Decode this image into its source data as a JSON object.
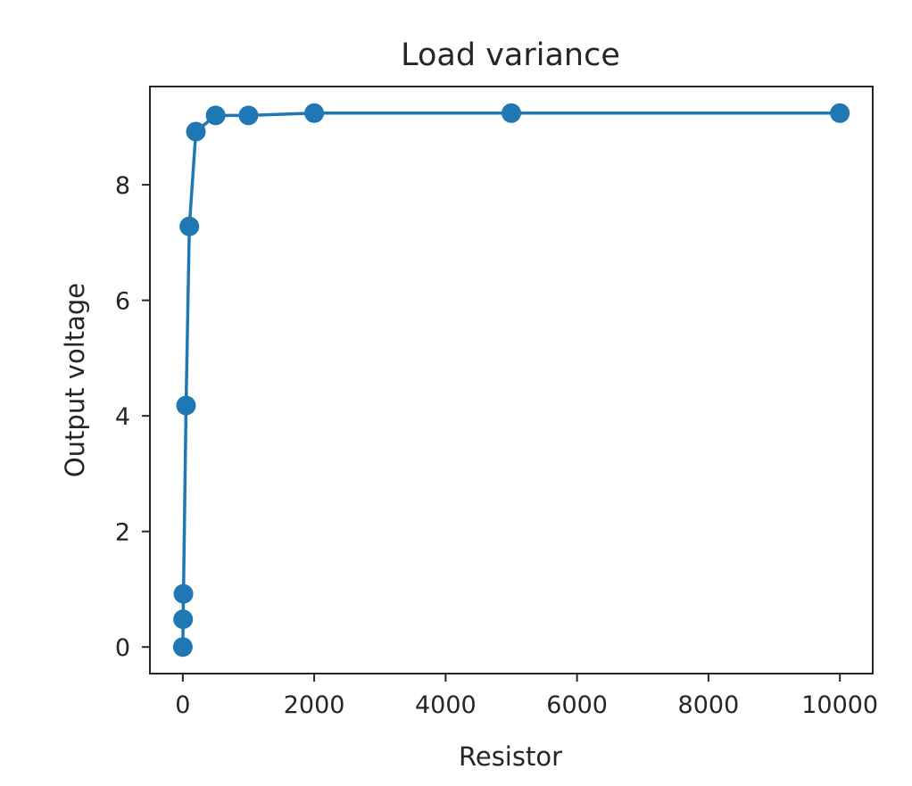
{
  "chart_data": {
    "type": "line",
    "title": "Load variance",
    "xlabel": "Resistor",
    "ylabel": "Output voltage",
    "xlim": [
      -500,
      10500
    ],
    "ylim": [
      -0.46,
      9.7
    ],
    "xticks": [
      0,
      2000,
      4000,
      6000,
      8000,
      10000
    ],
    "xtick_labels": [
      "0",
      "2000",
      "4000",
      "6000",
      "8000",
      "10000"
    ],
    "yticks": [
      0,
      2,
      4,
      6,
      8
    ],
    "ytick_labels": [
      "0",
      "2",
      "4",
      "6",
      "8"
    ],
    "grid": false,
    "marker": "circle",
    "series": [
      {
        "color": "#1f77b4",
        "x": [
          1,
          5,
          10,
          50,
          100,
          200,
          500,
          1000,
          2000,
          5000,
          10000
        ],
        "y": [
          0.0,
          0.48,
          0.92,
          4.18,
          7.28,
          8.92,
          9.2,
          9.2,
          9.24,
          9.24,
          9.24
        ]
      }
    ]
  }
}
